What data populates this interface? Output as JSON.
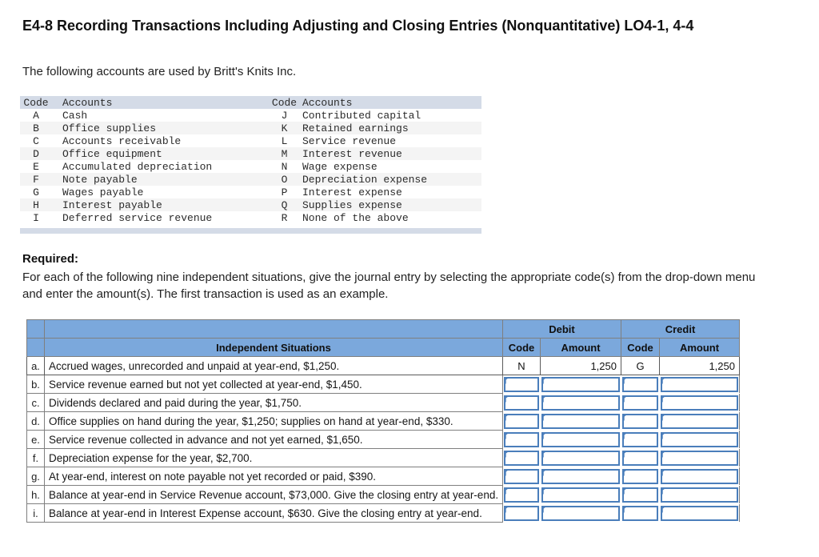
{
  "page": {
    "title": "E4-8 Recording Transactions Including Adjusting and Closing Entries (Nonquantitative) LO4-1, 4-4",
    "intro": "The following accounts are used by Britt's Knits Inc."
  },
  "accounts_table": {
    "left_code_header": "Code",
    "left_accounts_header": "Accounts",
    "right_code_header": "Code",
    "right_accounts_header": "Accounts",
    "rows": [
      {
        "left_code": "A",
        "left_account": "Cash",
        "right_code": "J",
        "right_account": "Contributed capital"
      },
      {
        "left_code": "B",
        "left_account": "Office supplies",
        "right_code": "K",
        "right_account": "Retained earnings"
      },
      {
        "left_code": "C",
        "left_account": "Accounts receivable",
        "right_code": "L",
        "right_account": "Service revenue"
      },
      {
        "left_code": "D",
        "left_account": "Office equipment",
        "right_code": "M",
        "right_account": "Interest revenue"
      },
      {
        "left_code": "E",
        "left_account": "Accumulated depreciation",
        "right_code": "N",
        "right_account": "Wage expense"
      },
      {
        "left_code": "F",
        "left_account": "Note payable",
        "right_code": "O",
        "right_account": "Depreciation expense"
      },
      {
        "left_code": "G",
        "left_account": "Wages payable",
        "right_code": "P",
        "right_account": "Interest expense"
      },
      {
        "left_code": "H",
        "left_account": "Interest payable",
        "right_code": "Q",
        "right_account": "Supplies expense"
      },
      {
        "left_code": "I",
        "left_account": "Deferred service revenue",
        "right_code": "R",
        "right_account": "None of the above"
      }
    ]
  },
  "required": {
    "heading": "Required:",
    "instructions": "For each of the following nine independent situations, give the journal entry by selecting the appropriate code(s) from the drop-down menu and enter the amount(s). The first transaction is used as an example."
  },
  "journal_table": {
    "headers": {
      "debit": "Debit",
      "credit": "Credit",
      "situations": "Independent Situations",
      "code": "Code",
      "amount": "Amount"
    },
    "rows": [
      {
        "label": "a.",
        "situation": "Accrued wages, unrecorded and unpaid at year-end, $1,250.",
        "filled": true,
        "debit_code": "N",
        "debit_amount": "1,250",
        "credit_code": "G",
        "credit_amount": "1,250"
      },
      {
        "label": "b.",
        "situation": "Service revenue earned but not yet collected at year-end, $1,450.",
        "filled": false,
        "debit_code": "",
        "debit_amount": "",
        "credit_code": "",
        "credit_amount": ""
      },
      {
        "label": "c.",
        "situation": "Dividends declared and paid during the year, $1,750.",
        "filled": false,
        "debit_code": "",
        "debit_amount": "",
        "credit_code": "",
        "credit_amount": ""
      },
      {
        "label": "d.",
        "situation": "Office supplies on hand during the year, $1,250; supplies on hand at year-end, $330.",
        "filled": false,
        "debit_code": "",
        "debit_amount": "",
        "credit_code": "",
        "credit_amount": ""
      },
      {
        "label": "e.",
        "situation": "Service revenue collected in advance and not yet earned, $1,650.",
        "filled": false,
        "debit_code": "",
        "debit_amount": "",
        "credit_code": "",
        "credit_amount": ""
      },
      {
        "label": "f.",
        "situation": "Depreciation expense for the year, $2,700.",
        "filled": false,
        "debit_code": "",
        "debit_amount": "",
        "credit_code": "",
        "credit_amount": ""
      },
      {
        "label": "g.",
        "situation": "At year-end, interest on note payable not yet recorded or paid, $390.",
        "filled": false,
        "debit_code": "",
        "debit_amount": "",
        "credit_code": "",
        "credit_amount": ""
      },
      {
        "label": "h.",
        "situation": "Balance at year-end in Service Revenue account, $73,000. Give the closing entry at year-end.",
        "filled": false,
        "debit_code": "",
        "debit_amount": "",
        "credit_code": "",
        "credit_amount": ""
      },
      {
        "label": "i.",
        "situation": "Balance at year-end in Interest Expense account, $630. Give the closing entry at year-end.",
        "filled": false,
        "debit_code": "",
        "debit_amount": "",
        "credit_code": "",
        "credit_amount": ""
      }
    ]
  },
  "colors": {
    "table_header_blue": "#7BA8DC",
    "accounts_header_bg": "#D4DBE7",
    "stripe_bg": "#F4F4F4",
    "input_border_blue": "#4A7EBB"
  }
}
